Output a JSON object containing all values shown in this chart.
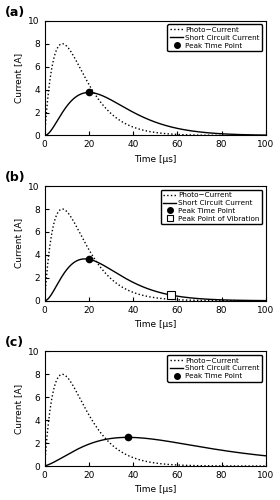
{
  "panels": [
    "(a)",
    "(b)",
    "(c)"
  ],
  "xlim": [
    0,
    100
  ],
  "ylim": [
    0,
    10
  ],
  "yticks": [
    0,
    2,
    4,
    6,
    8,
    10
  ],
  "xticks": [
    0,
    20,
    40,
    60,
    80,
    100
  ],
  "xlabel": "Time [μs]",
  "ylabel": "Current [A]",
  "photo_peak_time": 8,
  "photo_peak_value": 8.0,
  "panel_a": {
    "peak_sc_time": 20,
    "peak_sc_value": 3.75,
    "sc_rise_tau": 12,
    "sc_decay_tau": 28,
    "legend": [
      "Photo−Current",
      "Short Circuit Current",
      "Peak Time Point"
    ]
  },
  "panel_b": {
    "peak_sc_time": 20,
    "peak_sc_value": 3.65,
    "sc_rise_tau": 12,
    "sc_decay_tau": 22,
    "vibration_time": 57,
    "vibration_value": 0.18,
    "legend": [
      "Photo−Current",
      "Short Circuit Current",
      "Peak Time Point",
      "Peak Point of Vibration"
    ]
  },
  "panel_c": {
    "peak_sc_time": 38,
    "peak_sc_value": 2.5,
    "sc_rise_tau": 25,
    "sc_decay_tau": 200,
    "sustain_level": 1.0,
    "legend": [
      "Photo−Current",
      "Short Circuit Current",
      "Peak Time Point"
    ]
  },
  "figsize": [
    2.8,
    5.0
  ],
  "dpi": 100
}
